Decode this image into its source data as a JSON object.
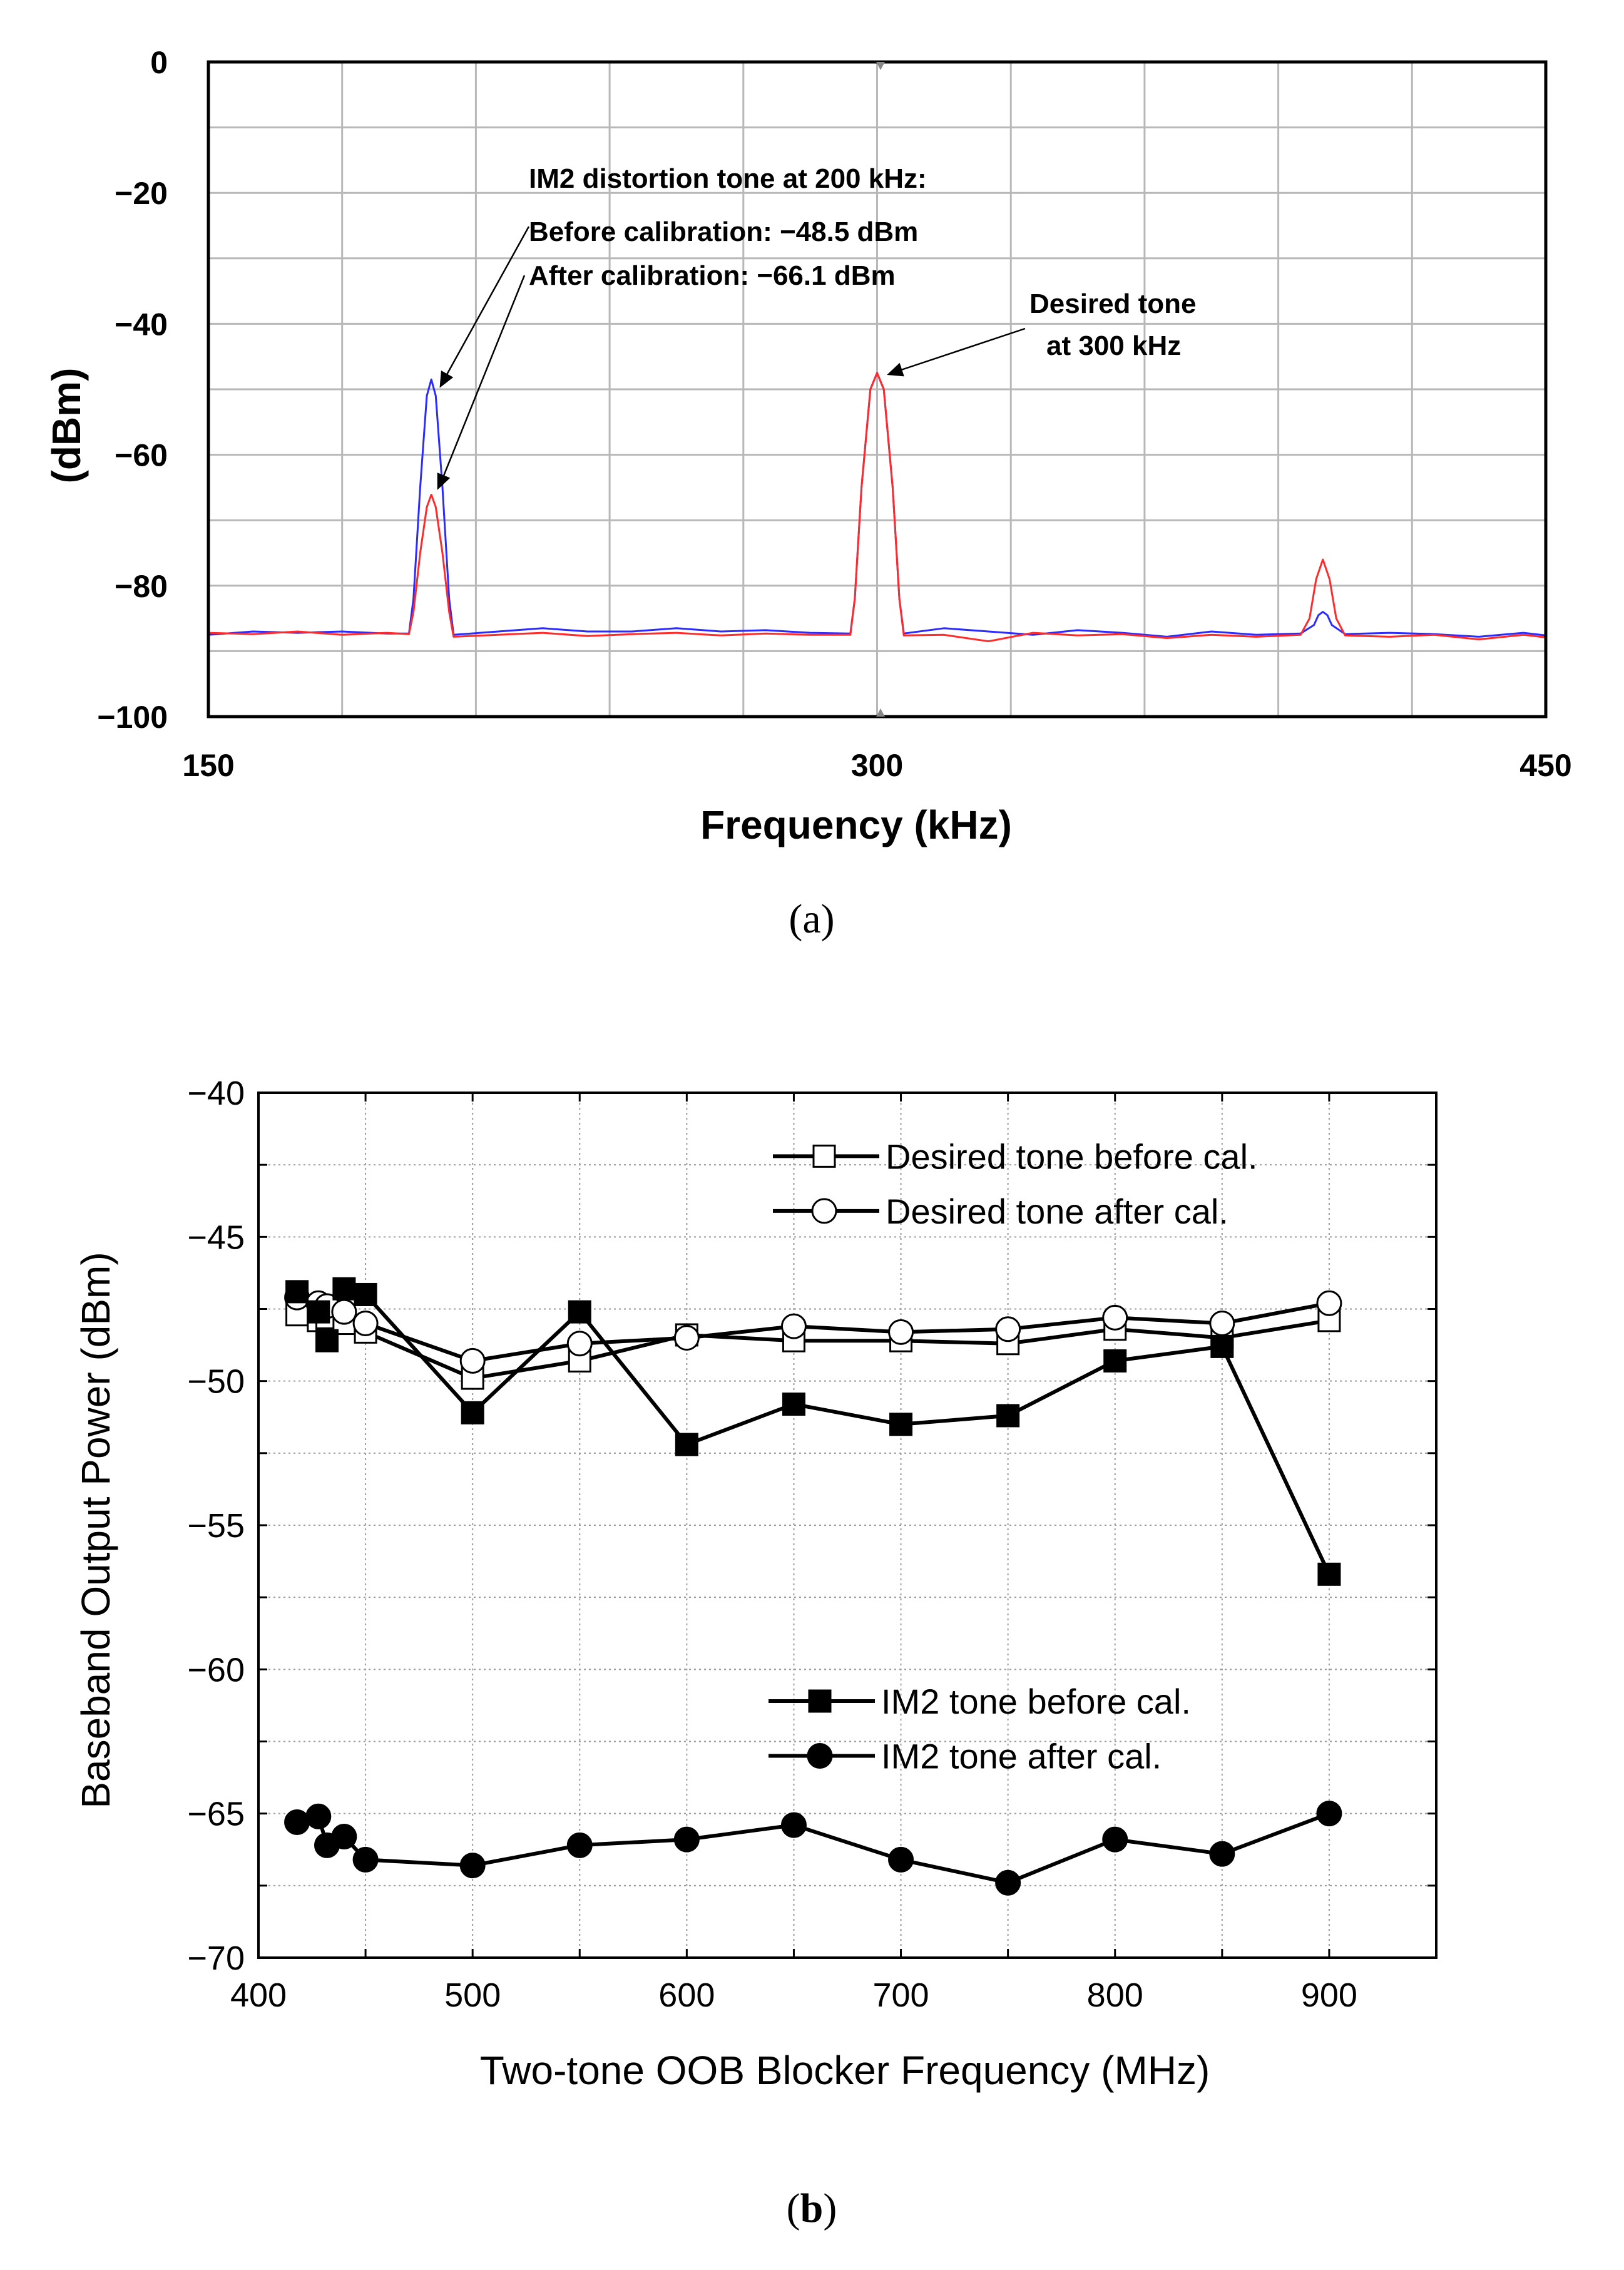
{
  "chart_data": [
    {
      "type": "line",
      "caption": {
        "open": "(",
        "letter": "a",
        "close": ")"
      },
      "xlabel": "Frequency (kHz)",
      "ylabel": "(dBm)",
      "xlim": [
        150,
        450
      ],
      "ylim": [
        -100,
        0
      ],
      "xticks": [
        150,
        300,
        450
      ],
      "xtick_labels": [
        "150",
        "300",
        "450"
      ],
      "yticks": [
        0,
        -20,
        -40,
        -60,
        -80,
        -100
      ],
      "ytick_labels": [
        "0",
        "−20",
        "−40",
        "−60",
        "−80",
        "−100"
      ],
      "grid": true,
      "series": [
        {
          "name": "Before calibration",
          "color": "#2b2bff",
          "points": [
            [
              150,
              -87.5
            ],
            [
              160,
              -87
            ],
            [
              170,
              -87.2
            ],
            [
              180,
              -87
            ],
            [
              190,
              -87.3
            ],
            [
              195,
              -87.3
            ],
            [
              196,
              -82
            ],
            [
              197.5,
              -65
            ],
            [
              199,
              -51
            ],
            [
              200,
              -48.5
            ],
            [
              201,
              -51
            ],
            [
              202.5,
              -65
            ],
            [
              204,
              -82
            ],
            [
              205,
              -87.5
            ],
            [
              215,
              -87
            ],
            [
              225,
              -86.5
            ],
            [
              235,
              -87
            ],
            [
              245,
              -87
            ],
            [
              255,
              -86.5
            ],
            [
              265,
              -87
            ],
            [
              275,
              -86.8
            ],
            [
              285,
              -87.2
            ],
            [
              294,
              -87.3
            ],
            [
              295,
              -82
            ],
            [
              296.5,
              -65
            ],
            [
              298.5,
              -50
            ],
            [
              300,
              -47.5
            ],
            [
              301.5,
              -50
            ],
            [
              303.5,
              -65
            ],
            [
              305,
              -82
            ],
            [
              306,
              -87.3
            ],
            [
              315,
              -86.5
            ],
            [
              325,
              -87
            ],
            [
              335,
              -87.5
            ],
            [
              345,
              -86.8
            ],
            [
              355,
              -87.2
            ],
            [
              365,
              -87.8
            ],
            [
              375,
              -87
            ],
            [
              385,
              -87.5
            ],
            [
              395,
              -87.3
            ],
            [
              398,
              -86
            ],
            [
              399,
              -84.5
            ],
            [
              400,
              -84
            ],
            [
              401,
              -84.5
            ],
            [
              402,
              -86
            ],
            [
              405,
              -87.4
            ],
            [
              415,
              -87.2
            ],
            [
              425,
              -87.4
            ],
            [
              435,
              -87.8
            ],
            [
              445,
              -87.2
            ],
            [
              450,
              -87.6
            ]
          ]
        },
        {
          "name": "After calibration",
          "color": "#ff2b2b",
          "points": [
            [
              150,
              -87.2
            ],
            [
              160,
              -87.4
            ],
            [
              170,
              -87
            ],
            [
              180,
              -87.5
            ],
            [
              190,
              -87.2
            ],
            [
              195,
              -87.4
            ],
            [
              196,
              -84
            ],
            [
              197.5,
              -75
            ],
            [
              199,
              -68
            ],
            [
              200,
              -66.1
            ],
            [
              201,
              -68
            ],
            [
              202.5,
              -75
            ],
            [
              204,
              -84
            ],
            [
              205,
              -87.8
            ],
            [
              215,
              -87.5
            ],
            [
              225,
              -87.2
            ],
            [
              235,
              -87.7
            ],
            [
              245,
              -87.4
            ],
            [
              255,
              -87.2
            ],
            [
              265,
              -87.6
            ],
            [
              275,
              -87.3
            ],
            [
              285,
              -87.5
            ],
            [
              294,
              -87.5
            ],
            [
              295,
              -82
            ],
            [
              296.5,
              -65
            ],
            [
              298.5,
              -50
            ],
            [
              300,
              -47.5
            ],
            [
              301.5,
              -50
            ],
            [
              303.5,
              -65
            ],
            [
              305,
              -82
            ],
            [
              306,
              -87.6
            ],
            [
              315,
              -87.5
            ],
            [
              325,
              -88.5
            ],
            [
              335,
              -87.2
            ],
            [
              345,
              -87.6
            ],
            [
              355,
              -87.4
            ],
            [
              365,
              -88
            ],
            [
              375,
              -87.5
            ],
            [
              385,
              -87.8
            ],
            [
              395,
              -87.5
            ],
            [
              397,
              -85
            ],
            [
              398.5,
              -79
            ],
            [
              400,
              -76
            ],
            [
              401.5,
              -79
            ],
            [
              403,
              -85
            ],
            [
              405,
              -87.6
            ],
            [
              415,
              -87.8
            ],
            [
              425,
              -87.5
            ],
            [
              435,
              -88.2
            ],
            [
              445,
              -87.5
            ],
            [
              450,
              -87.9
            ]
          ]
        }
      ],
      "annotations": {
        "im2_title": "IM2 distortion tone at 200 kHz:",
        "before": "Before calibration: −48.5 dBm",
        "after": "After calibration: −66.1 dBm",
        "desired_l1": "Desired tone",
        "desired_l2": "at 300 kHz"
      }
    },
    {
      "type": "line",
      "caption": {
        "open": "(",
        "letter": "b",
        "close": ")"
      },
      "xlabel": "Two-tone OOB Blocker Frequency (MHz)",
      "ylabel": "Baseband Output Power (dBm)",
      "xlim": [
        400,
        950
      ],
      "ylim": [
        -70,
        -40
      ],
      "xticks": [
        400,
        500,
        600,
        700,
        800,
        900
      ],
      "xtick_labels": [
        "400",
        "500",
        "600",
        "700",
        "800",
        "900"
      ],
      "yticks": [
        -40,
        -45,
        -50,
        -55,
        -60,
        -65,
        -70
      ],
      "ytick_labels": [
        "−40",
        "−45",
        "−50",
        "−55",
        "−60",
        "−65",
        "−70"
      ],
      "grid": true,
      "legend_placement": "top-right and center-right",
      "series": [
        {
          "name": "Desired tone before cal.",
          "marker": "open-square",
          "x": [
            418,
            428,
            432,
            440,
            450,
            500,
            550,
            600,
            650,
            700,
            750,
            800,
            850,
            900
          ],
          "values": [
            -47.7,
            -47.9,
            -47.8,
            -48.0,
            -48.3,
            -49.9,
            -49.3,
            -48.4,
            -48.6,
            -48.6,
            -48.7,
            -48.2,
            -48.5,
            -47.9
          ]
        },
        {
          "name": "Desired tone after cal.",
          "marker": "open-circle",
          "x": [
            418,
            428,
            432,
            440,
            450,
            500,
            550,
            600,
            650,
            700,
            750,
            800,
            850,
            900
          ],
          "values": [
            -47.1,
            -47.3,
            -47.4,
            -47.6,
            -48.0,
            -49.3,
            -48.7,
            -48.5,
            -48.1,
            -48.3,
            -48.2,
            -47.8,
            -48.0,
            -47.3
          ]
        },
        {
          "name": "IM2 tone before cal.",
          "marker": "filled-square",
          "x": [
            418,
            428,
            432,
            440,
            450,
            500,
            550,
            600,
            650,
            700,
            750,
            800,
            850,
            900
          ],
          "values": [
            -46.9,
            -47.6,
            -48.6,
            -46.8,
            -47.0,
            -51.1,
            -47.6,
            -52.2,
            -50.8,
            -51.5,
            -51.2,
            -49.3,
            -48.8,
            -56.7
          ]
        },
        {
          "name": "IM2 tone after cal.",
          "marker": "filled-circle",
          "x": [
            418,
            428,
            432,
            440,
            450,
            500,
            550,
            600,
            650,
            700,
            750,
            800,
            850,
            900
          ],
          "values": [
            -65.3,
            -65.1,
            -66.1,
            -65.8,
            -66.6,
            -66.8,
            -66.1,
            -65.9,
            -65.4,
            -66.6,
            -67.4,
            -65.9,
            -66.4,
            -65.0
          ]
        }
      ]
    }
  ]
}
